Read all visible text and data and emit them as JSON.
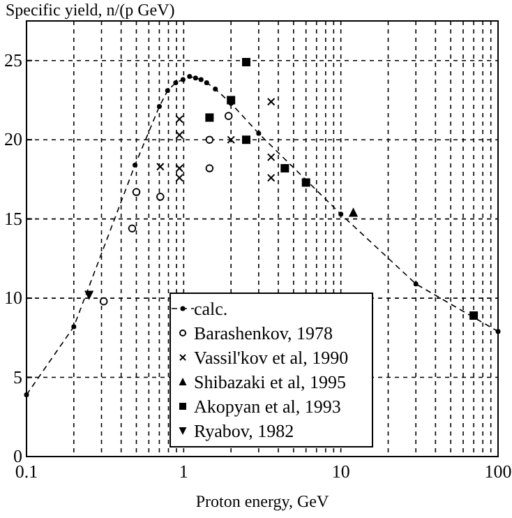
{
  "chart_data": {
    "type": "scatter",
    "ylabel": "Specific yield, n/(p GeV)",
    "xlabel": "Proton energy, GeV",
    "log": "x",
    "xlim": [
      0.1,
      100
    ],
    "ylim": [
      0,
      27.5
    ],
    "xticks": [
      0.1,
      {
        "value": 0.2,
        "label": null
      },
      {
        "value": 0.3,
        "label": null
      },
      {
        "value": 0.4,
        "label": null
      },
      {
        "value": 0.5,
        "label": null
      },
      {
        "value": 0.6,
        "label": null
      },
      {
        "value": 0.7,
        "label": null
      },
      {
        "value": 0.8,
        "label": null
      },
      {
        "value": 0.9,
        "label": null
      },
      1,
      {
        "value": 2,
        "label": null
      },
      {
        "value": 3,
        "label": null
      },
      {
        "value": 4,
        "label": null
      },
      {
        "value": 5,
        "label": null
      },
      {
        "value": 6,
        "label": null
      },
      {
        "value": 7,
        "label": null
      },
      {
        "value": 8,
        "label": null
      },
      {
        "value": 9,
        "label": null
      },
      10,
      {
        "value": 20,
        "label": null
      },
      {
        "value": 30,
        "label": null
      },
      {
        "value": 40,
        "label": null
      },
      {
        "value": 50,
        "label": null
      },
      {
        "value": 60,
        "label": null
      },
      {
        "value": 70,
        "label": null
      },
      {
        "value": 80,
        "label": null
      },
      {
        "value": 90,
        "label": null
      },
      100
    ],
    "yticks": [
      0,
      5,
      10,
      15,
      20,
      25
    ],
    "grid": true,
    "legend": "bottom",
    "series": [
      {
        "name": "calc.",
        "type": "line",
        "marker": "circle",
        "line_style": "dashed",
        "color": "#000000",
        "x": [
          0.1,
          0.2,
          0.49,
          0.7,
          0.79,
          0.89,
          0.99,
          1.09,
          1.19,
          1.29,
          1.4,
          1.59,
          2.0,
          3.0,
          10,
          30,
          100
        ],
        "values": [
          3.9,
          8.2,
          18.4,
          22.1,
          23.1,
          23.6,
          23.8,
          24.0,
          23.9,
          23.8,
          23.6,
          23.2,
          22.3,
          20.4,
          15.3,
          10.9,
          7.9
        ]
      },
      {
        "name": "Barashenkov, 1978",
        "marker": "circle",
        "color": "#000000",
        "x": [
          0.31,
          0.47,
          0.5,
          0.71,
          1.46,
          1.46,
          1.93
        ],
        "values": [
          9.8,
          14.4,
          16.7,
          16.4,
          20.0,
          18.2,
          21.5
        ]
      },
      {
        "name": "Vassil'kov et al, 1990",
        "marker": "cross",
        "color": "#000000",
        "x": [
          0.71,
          0.94,
          0.94,
          0.94,
          0.94,
          2.0,
          3.6,
          3.6,
          3.6
        ],
        "values": [
          18.3,
          21.3,
          20.3,
          18.2,
          17.6,
          20.0,
          22.4,
          18.9,
          17.6
        ]
      },
      {
        "name": "Shibazaki et al, 1995",
        "marker": "triangle",
        "color": "#000000",
        "x": [
          12
        ],
        "values": [
          15.4
        ]
      },
      {
        "name": "Akopyan et al, 1993",
        "marker": "square",
        "color": "#000000",
        "x": [
          1.46,
          2.0,
          2.5,
          2.5,
          4.4,
          6.0,
          70
        ],
        "values": [
          21.4,
          22.5,
          24.9,
          20.0,
          18.2,
          17.3,
          8.9
        ]
      },
      {
        "name": "Ryabov, 1982",
        "marker": "triangle-down",
        "color": "#000000",
        "x": [
          0.25
        ],
        "values": [
          10.2
        ]
      }
    ]
  }
}
